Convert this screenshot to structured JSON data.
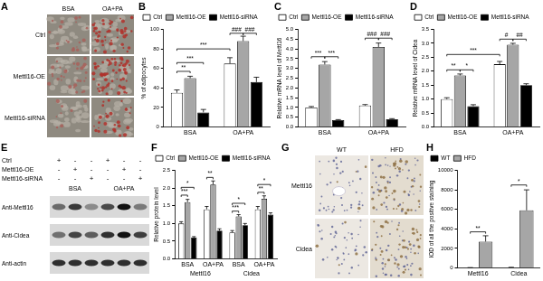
{
  "panels": {
    "A": {
      "columns": [
        "BSA",
        "OA+PA"
      ],
      "rows": [
        "Ctrl",
        "Mettl16-OE",
        "Mettl16-siRNA"
      ]
    },
    "E": {
      "conditions": [
        {
          "name": "Ctrl",
          "signs": [
            "+",
            "-",
            "-",
            "+",
            "-",
            "-"
          ]
        },
        {
          "name": "Mettl16-OE",
          "signs": [
            "-",
            "+",
            "-",
            "-",
            "+",
            "-"
          ]
        },
        {
          "name": "Mettl16-siRNA",
          "signs": [
            "-",
            "-",
            "+",
            "-",
            "-",
            "+"
          ]
        }
      ],
      "groups": [
        "BSA",
        "OA+PA"
      ],
      "blots": [
        "Anti-Mettl16",
        "Anti-Cidea",
        "Anti-actin"
      ]
    },
    "G": {
      "columns": [
        "WT",
        "HFD"
      ],
      "rows": [
        "Mettl16",
        "Cidea"
      ]
    }
  },
  "chart_panels": [
    "B",
    "C",
    "D",
    "F",
    "H"
  ],
  "chart_data": [
    {
      "type": "bar",
      "ylabel": "% of adipocytes",
      "categories": [
        "BSA",
        "OA+PA"
      ],
      "series": [
        {
          "name": "Ctrl",
          "color": "#ffffff",
          "values": [
            35,
            65
          ],
          "errors": [
            3,
            6
          ]
        },
        {
          "name": "Mettl16-OE",
          "color": "#a6a6a6",
          "values": [
            50,
            88
          ],
          "errors": [
            2,
            5
          ]
        },
        {
          "name": "Mettl16-siRNA",
          "color": "#000000",
          "values": [
            15,
            46
          ],
          "errors": [
            3,
            5
          ]
        }
      ],
      "ylim": [
        0,
        100
      ],
      "yticks": [
        0,
        20,
        40,
        60,
        80,
        100
      ],
      "grid": false,
      "legend": "top",
      "annotations": [
        {
          "text": "**",
          "between": [
            [
              0,
              0
            ],
            [
              0,
              1
            ]
          ],
          "y": 57
        },
        {
          "text": "***",
          "between": [
            [
              0,
              0
            ],
            [
              0,
              2
            ]
          ],
          "y": 66
        },
        {
          "text": "***",
          "between": [
            [
              0,
              0
            ],
            [
              1,
              0
            ]
          ],
          "y": 80
        },
        {
          "text": "###",
          "between": [
            [
              1,
              0
            ],
            [
              1,
              1
            ]
          ],
          "y": 96
        },
        {
          "text": "###",
          "between": [
            [
              1,
              1
            ],
            [
              1,
              2
            ]
          ],
          "y": 96
        }
      ]
    },
    {
      "type": "bar",
      "ylabel": "Relative mRNA level of Mettl16",
      "categories": [
        "BSA",
        "OA+PA"
      ],
      "series": [
        {
          "name": "Ctrl",
          "color": "#ffffff",
          "values": [
            1,
            1.1
          ],
          "errors": [
            0.05,
            0.05
          ]
        },
        {
          "name": "Mettl16-OE",
          "color": "#a6a6a6",
          "values": [
            3.2,
            4.1
          ],
          "errors": [
            0.15,
            0.2
          ]
        },
        {
          "name": "Mettl16-siRNA",
          "color": "#000000",
          "values": [
            0.35,
            0.4
          ],
          "errors": [
            0.03,
            0.03
          ]
        }
      ],
      "ylim": [
        0,
        5
      ],
      "yticks": [
        {
          "value": 0,
          "label": "0.0"
        },
        0.5,
        {
          "value": 1,
          "label": "1.0"
        },
        1.5,
        {
          "value": 2,
          "label": "2.0"
        },
        2.5,
        {
          "value": 3,
          "label": "3.0"
        },
        3.5,
        {
          "value": 4,
          "label": "4.0"
        },
        4.5,
        {
          "value": 5,
          "label": "5.0"
        }
      ],
      "grid": false,
      "legend": "top",
      "annotations": [
        {
          "text": "***",
          "between": [
            [
              0,
              0
            ],
            [
              0,
              1
            ]
          ],
          "y": 3.6
        },
        {
          "text": "***",
          "between": [
            [
              0,
              1
            ],
            [
              0,
              2
            ]
          ],
          "y": 3.6
        },
        {
          "text": "###",
          "between": [
            [
              1,
              0
            ],
            [
              1,
              1
            ]
          ],
          "y": 4.55
        },
        {
          "text": "###",
          "between": [
            [
              1,
              1
            ],
            [
              1,
              2
            ]
          ],
          "y": 4.55
        }
      ]
    },
    {
      "type": "bar",
      "ylabel": "Relative mRNA level of Cidea",
      "categories": [
        "BSA",
        "OA+PA"
      ],
      "series": [
        {
          "name": "Ctrl",
          "color": "#ffffff",
          "values": [
            1,
            2.25
          ],
          "errors": [
            0.05,
            0.1
          ]
        },
        {
          "name": "Mettl16-OE",
          "color": "#a6a6a6",
          "values": [
            1.85,
            2.95
          ],
          "errors": [
            0.05,
            0.05
          ]
        },
        {
          "name": "Mettl16-siRNA",
          "color": "#000000",
          "values": [
            0.75,
            1.5
          ],
          "errors": [
            0.05,
            0.05
          ]
        }
      ],
      "ylim": [
        0,
        3.5
      ],
      "yticks": [
        {
          "value": 0,
          "label": "0.0"
        },
        0.5,
        {
          "value": 1,
          "label": "1.0"
        },
        1.5,
        {
          "value": 2,
          "label": "2.0"
        },
        2.5,
        {
          "value": 3,
          "label": "3.0"
        },
        3.5
      ],
      "grid": false,
      "legend": "top",
      "annotations": [
        {
          "text": "**",
          "between": [
            [
              0,
              0
            ],
            [
              0,
              1
            ]
          ],
          "y": 2.05
        },
        {
          "text": "*",
          "between": [
            [
              0,
              1
            ],
            [
              0,
              2
            ]
          ],
          "y": 2.05
        },
        {
          "text": "***",
          "between": [
            [
              0,
              0
            ],
            [
              1,
              0
            ]
          ],
          "y": 2.6
        },
        {
          "text": "#",
          "between": [
            [
              1,
              0
            ],
            [
              1,
              1
            ]
          ],
          "y": 3.15
        },
        {
          "text": "##",
          "between": [
            [
              1,
              1
            ],
            [
              1,
              2
            ]
          ],
          "y": 3.15
        }
      ]
    },
    {
      "type": "bar",
      "ylabel": "Relative protein level",
      "categories": [
        "BSA",
        "OA+PA",
        "BSA",
        "OA+PA"
      ],
      "category_groups": [
        {
          "label": "Mettl16",
          "span": 2
        },
        {
          "label": "Cidea",
          "span": 2
        }
      ],
      "series": [
        {
          "name": "Ctrl",
          "color": "#ffffff",
          "values": [
            1,
            1.4,
            0.75,
            1.4
          ],
          "errors": [
            0.05,
            0.08,
            0.05,
            0.08
          ]
        },
        {
          "name": "Mettl16-OE",
          "color": "#a6a6a6",
          "values": [
            1.6,
            2.1,
            1.2,
            1.7
          ],
          "errors": [
            0.08,
            0.1,
            0.05,
            0.08
          ]
        },
        {
          "name": "Mettl16-siRNA",
          "color": "#000000",
          "values": [
            0.6,
            0.8,
            0.95,
            1.25
          ],
          "errors": [
            0.03,
            0.05,
            0.05,
            0.05
          ]
        }
      ],
      "ylim": [
        0,
        2.5
      ],
      "yticks": [
        {
          "value": 0,
          "label": "0.0"
        },
        0.5,
        {
          "value": 1,
          "label": "1.0"
        },
        1.5,
        {
          "value": 2,
          "label": "2.0"
        },
        2.5
      ],
      "grid": false,
      "legend": "top",
      "annotations": [
        {
          "text": "***",
          "between": [
            [
              0,
              0
            ],
            [
              0,
              1
            ]
          ],
          "y": 1.8
        },
        {
          "text": "*",
          "between": [
            [
              0,
              0
            ],
            [
              0,
              2
            ]
          ],
          "y": 2.02
        },
        {
          "text": "**",
          "between": [
            [
              1,
              0
            ],
            [
              1,
              1
            ]
          ],
          "y": 2.3
        },
        {
          "text": "***",
          "between": [
            [
              2,
              0
            ],
            [
              2,
              1
            ]
          ],
          "y": 1.35
        },
        {
          "text": "*",
          "between": [
            [
              2,
              0
            ],
            [
              2,
              2
            ]
          ],
          "y": 1.57
        },
        {
          "text": "**",
          "between": [
            [
              3,
              0
            ],
            [
              3,
              1
            ]
          ],
          "y": 1.88
        },
        {
          "text": "*",
          "between": [
            [
              3,
              0
            ],
            [
              3,
              2
            ]
          ],
          "y": 2.1
        }
      ]
    },
    {
      "type": "bar",
      "ylabel": "IOD of all the positive staining",
      "categories": [
        "Mettl16",
        "Cidea"
      ],
      "series": [
        {
          "name": "WT",
          "color": "#000000",
          "values": [
            30,
            50
          ],
          "errors": [
            10,
            20
          ]
        },
        {
          "name": "HFD",
          "color": "#a6a6a6",
          "values": [
            2700,
            5900
          ],
          "errors": [
            600,
            2100
          ]
        }
      ],
      "ylim": [
        0,
        10000
      ],
      "yticks": [
        0,
        2000,
        4000,
        6000,
        8000,
        10000
      ],
      "grid": false,
      "legend": "top",
      "annotations": [
        {
          "text": "**",
          "between": [
            [
              0,
              0
            ],
            [
              0,
              1
            ]
          ],
          "y": 3700
        },
        {
          "text": "*",
          "between": [
            [
              1,
              0
            ],
            [
              1,
              1
            ]
          ],
          "y": 8500
        }
      ]
    }
  ]
}
